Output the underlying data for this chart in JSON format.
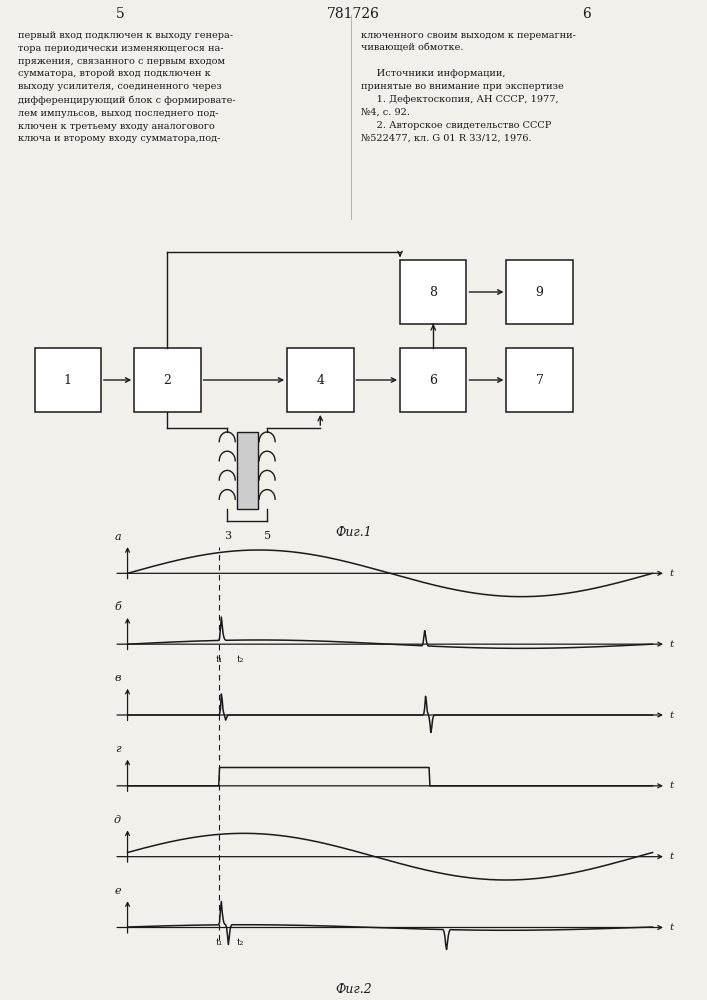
{
  "title_number": "781726",
  "page_left": "5",
  "page_right": "6",
  "text_left": "первый вход подключен к выходу генера-\nтора периодически изменяющегося на-\nпряжения, связанного с первым входом\nсумматора, второй вход подключен к\nвыходу усилителя, соединенного через\nдифференцирующий блок с формировате-\nлем импульсов, выход последнего под-\nключен к третьему входу аналогового\nключа и второму входу сумматора,под-",
  "text_right": "ключенного своим выходом к перемагни-\nчивающей обмотке.\n\n     Источники информации,\nпринятые во внимание при экспертизе\n     1. Дефектоскопия, АН СССР, 1977,\n№4, с. 92.\n     2. Авторское свидетельство СССР\n№522477, кл. G 01 R 33/12, 1976.",
  "fig1_label": "Фиг.1",
  "fig2_label": "Фиг.2",
  "bg_color": "#f2f0eb",
  "line_color": "#1a1a1a",
  "text_color": "#1a1a1a"
}
